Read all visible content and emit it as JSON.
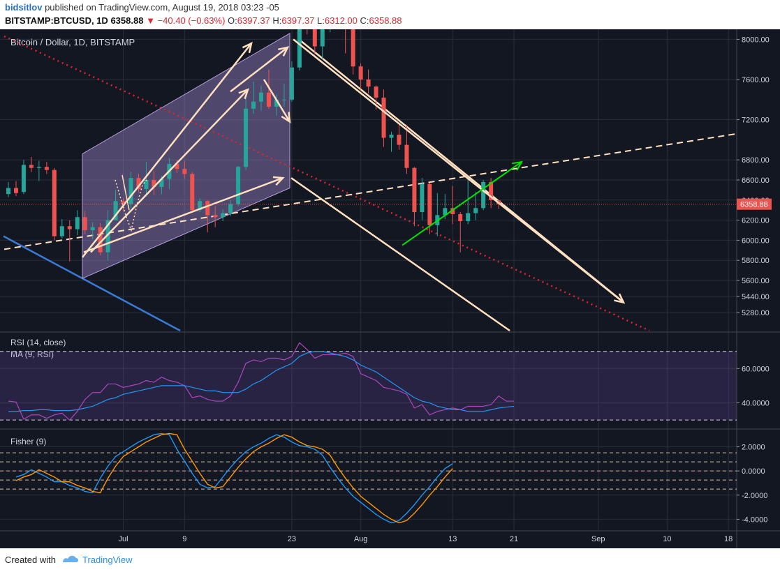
{
  "header": {
    "username": "bidsitlov",
    "published_text": "published on TradingView.com, August 19, 2018 03:23 -05",
    "symbol": "BITSTAMP:BTCUSD, 1D",
    "last": "6358.88",
    "change": "−40.40 (−0.63%)",
    "o_label": "O:",
    "o_value": "6397.37",
    "h_label": "H:",
    "h_value": "6397.37",
    "l_label": "L:",
    "l_value": "6312.00",
    "c_label": "C:",
    "c_value": "6358.88"
  },
  "footer": {
    "created_with": "Created with",
    "brand": "TradingView"
  },
  "colors": {
    "background": "#131722",
    "bullish": "#26a69a",
    "bearish": "#ef5350",
    "rsi_line": "#ab47bc",
    "rsi_ma": "#2196f3",
    "fisher": "#2196f3",
    "fisher_trigger": "#ff9800",
    "drawing": "#ffe0c0",
    "green_arrow": "#00e600",
    "blue_line": "#3a7bd5",
    "red_dotted": "#e0242f",
    "channel_fill": "#9a86c8"
  },
  "chart_data": [
    {
      "type": "candlestick",
      "title": "Bitcoin / Dollar, 1D, BITSTAMP",
      "last_price_label": "6358.88",
      "ylim": [
        5100,
        8100
      ],
      "y_ticks": [
        5280,
        5440,
        5600,
        5800,
        6000,
        6200,
        6400,
        6600,
        6800,
        7200,
        7600,
        8000
      ],
      "y_tick_labels": [
        "5280.00",
        "5440.00",
        "5600.00",
        "5800.00",
        "6000.00",
        "6200.00",
        "6400.00",
        "6600.00",
        "6800.00",
        "7200.00",
        "7600.00",
        "8000.00"
      ],
      "x_tick_labels": [
        "Jul",
        "9",
        "23",
        "Aug",
        "13",
        "21",
        "Sep",
        "10",
        "18"
      ],
      "x_tick_dates": [
        "2018-07-01",
        "2018-07-09",
        "2018-07-23",
        "2018-08-01",
        "2018-08-13",
        "2018-08-21",
        "2018-09-01",
        "2018-09-10",
        "2018-09-18"
      ],
      "x_range": [
        "2018-06-16",
        "2018-09-25"
      ],
      "candles": [
        {
          "date": "2018-06-16",
          "o": 6460,
          "h": 6580,
          "l": 6430,
          "c": 6520
        },
        {
          "date": "2018-06-17",
          "o": 6520,
          "h": 6590,
          "l": 6440,
          "c": 6470
        },
        {
          "date": "2018-06-18",
          "o": 6480,
          "h": 6800,
          "l": 6460,
          "c": 6750
        },
        {
          "date": "2018-06-19",
          "o": 6750,
          "h": 6830,
          "l": 6680,
          "c": 6720
        },
        {
          "date": "2018-06-20",
          "o": 6720,
          "h": 6790,
          "l": 6590,
          "c": 6730
        },
        {
          "date": "2018-06-21",
          "o": 6730,
          "h": 6780,
          "l": 6660,
          "c": 6700
        },
        {
          "date": "2018-06-22",
          "o": 6700,
          "h": 6720,
          "l": 6000,
          "c": 6040
        },
        {
          "date": "2018-06-23",
          "o": 6040,
          "h": 6210,
          "l": 6020,
          "c": 6140
        },
        {
          "date": "2018-06-24",
          "o": 6140,
          "h": 6200,
          "l": 5790,
          "c": 6110
        },
        {
          "date": "2018-06-25",
          "o": 6110,
          "h": 6300,
          "l": 6050,
          "c": 6230
        },
        {
          "date": "2018-06-26",
          "o": 6230,
          "h": 6290,
          "l": 6060,
          "c": 6100
        },
        {
          "date": "2018-06-27",
          "o": 6100,
          "h": 6180,
          "l": 6010,
          "c": 6130
        },
        {
          "date": "2018-06-28",
          "o": 6130,
          "h": 6170,
          "l": 5850,
          "c": 5880
        },
        {
          "date": "2018-06-29",
          "o": 5880,
          "h": 6300,
          "l": 5800,
          "c": 6200
        },
        {
          "date": "2018-06-30",
          "o": 6200,
          "h": 6500,
          "l": 6200,
          "c": 6390
        },
        {
          "date": "2018-07-01",
          "o": 6390,
          "h": 6420,
          "l": 6290,
          "c": 6360
        },
        {
          "date": "2018-07-02",
          "o": 6360,
          "h": 6680,
          "l": 6320,
          "c": 6620
        },
        {
          "date": "2018-07-03",
          "o": 6620,
          "h": 6660,
          "l": 6480,
          "c": 6510
        },
        {
          "date": "2018-07-04",
          "o": 6510,
          "h": 6780,
          "l": 6460,
          "c": 6600
        },
        {
          "date": "2018-07-05",
          "o": 6600,
          "h": 6690,
          "l": 6450,
          "c": 6530
        },
        {
          "date": "2018-07-06",
          "o": 6530,
          "h": 6640,
          "l": 6460,
          "c": 6610
        },
        {
          "date": "2018-07-07",
          "o": 6610,
          "h": 6820,
          "l": 6510,
          "c": 6760
        },
        {
          "date": "2018-07-08",
          "o": 6760,
          "h": 6800,
          "l": 6670,
          "c": 6710
        },
        {
          "date": "2018-07-09",
          "o": 6710,
          "h": 6790,
          "l": 6610,
          "c": 6660
        },
        {
          "date": "2018-07-10",
          "o": 6660,
          "h": 6680,
          "l": 6290,
          "c": 6300
        },
        {
          "date": "2018-07-11",
          "o": 6300,
          "h": 6420,
          "l": 6280,
          "c": 6390
        },
        {
          "date": "2018-07-12",
          "o": 6390,
          "h": 6400,
          "l": 6080,
          "c": 6250
        },
        {
          "date": "2018-07-13",
          "o": 6250,
          "h": 6340,
          "l": 6130,
          "c": 6230
        },
        {
          "date": "2018-07-14",
          "o": 6230,
          "h": 6310,
          "l": 6190,
          "c": 6270
        },
        {
          "date": "2018-07-15",
          "o": 6270,
          "h": 6400,
          "l": 6240,
          "c": 6360
        },
        {
          "date": "2018-07-16",
          "o": 6360,
          "h": 6740,
          "l": 6340,
          "c": 6730
        },
        {
          "date": "2018-07-17",
          "o": 6730,
          "h": 7450,
          "l": 6700,
          "c": 7310
        },
        {
          "date": "2018-07-18",
          "o": 7310,
          "h": 7580,
          "l": 7260,
          "c": 7380
        },
        {
          "date": "2018-07-19",
          "o": 7380,
          "h": 7540,
          "l": 7290,
          "c": 7470
        },
        {
          "date": "2018-07-20",
          "o": 7470,
          "h": 7700,
          "l": 7310,
          "c": 7330
        },
        {
          "date": "2018-07-21",
          "o": 7330,
          "h": 7450,
          "l": 7240,
          "c": 7400
        },
        {
          "date": "2018-07-22",
          "o": 7400,
          "h": 7560,
          "l": 7330,
          "c": 7400
        },
        {
          "date": "2018-07-23",
          "o": 7400,
          "h": 7780,
          "l": 7380,
          "c": 7720
        },
        {
          "date": "2018-07-24",
          "o": 7720,
          "h": 8470,
          "l": 7690,
          "c": 8400
        },
        {
          "date": "2018-07-25",
          "o": 8400,
          "h": 8480,
          "l": 8050,
          "c": 8170
        },
        {
          "date": "2018-07-26",
          "o": 8170,
          "h": 8300,
          "l": 7850,
          "c": 7930
        },
        {
          "date": "2018-07-27",
          "o": 7930,
          "h": 8270,
          "l": 7800,
          "c": 8180
        },
        {
          "date": "2018-07-28",
          "o": 8180,
          "h": 8230,
          "l": 8070,
          "c": 8230
        },
        {
          "date": "2018-07-29",
          "o": 8230,
          "h": 8290,
          "l": 8110,
          "c": 8210
        },
        {
          "date": "2018-07-30",
          "o": 8210,
          "h": 8270,
          "l": 7860,
          "c": 8170
        },
        {
          "date": "2018-07-31",
          "o": 8170,
          "h": 8180,
          "l": 7650,
          "c": 7730
        },
        {
          "date": "2018-08-01",
          "o": 7730,
          "h": 7760,
          "l": 7500,
          "c": 7600
        },
        {
          "date": "2018-08-02",
          "o": 7600,
          "h": 7700,
          "l": 7460,
          "c": 7530
        },
        {
          "date": "2018-08-03",
          "o": 7530,
          "h": 7540,
          "l": 7300,
          "c": 7420
        },
        {
          "date": "2018-08-04",
          "o": 7420,
          "h": 7500,
          "l": 6930,
          "c": 7020
        },
        {
          "date": "2018-08-05",
          "o": 7020,
          "h": 7080,
          "l": 6880,
          "c": 7050
        },
        {
          "date": "2018-08-06",
          "o": 7050,
          "h": 7150,
          "l": 6900,
          "c": 6950
        },
        {
          "date": "2018-08-07",
          "o": 6950,
          "h": 7150,
          "l": 6660,
          "c": 6720
        },
        {
          "date": "2018-08-08",
          "o": 6720,
          "h": 6730,
          "l": 6140,
          "c": 6280
        },
        {
          "date": "2018-08-09",
          "o": 6280,
          "h": 6620,
          "l": 6200,
          "c": 6560
        },
        {
          "date": "2018-08-10",
          "o": 6560,
          "h": 6570,
          "l": 6060,
          "c": 6150
        },
        {
          "date": "2018-08-11",
          "o": 6150,
          "h": 6470,
          "l": 6040,
          "c": 6250
        },
        {
          "date": "2018-08-12",
          "o": 6250,
          "h": 6460,
          "l": 6210,
          "c": 6320
        },
        {
          "date": "2018-08-13",
          "o": 6320,
          "h": 6540,
          "l": 6160,
          "c": 6260
        },
        {
          "date": "2018-08-14",
          "o": 6260,
          "h": 6280,
          "l": 5880,
          "c": 6190
        },
        {
          "date": "2018-08-15",
          "o": 6190,
          "h": 6620,
          "l": 6160,
          "c": 6270
        },
        {
          "date": "2018-08-16",
          "o": 6270,
          "h": 6480,
          "l": 6200,
          "c": 6320
        },
        {
          "date": "2018-08-17",
          "o": 6320,
          "h": 6600,
          "l": 6300,
          "c": 6580
        },
        {
          "date": "2018-08-18",
          "o": 6580,
          "h": 6620,
          "l": 6320,
          "c": 6400
        },
        {
          "date": "2018-08-19",
          "o": 6397.37,
          "h": 6397.37,
          "l": 6312.0,
          "c": 6358.88
        }
      ]
    },
    {
      "type": "line",
      "title": "RSI (14, close)",
      "subtitle": "MA (9, RSI)",
      "ylim": [
        26,
        80
      ],
      "y_ticks": [
        40,
        60
      ],
      "y_tick_labels": [
        "40.0000",
        "60.0000"
      ],
      "band": [
        30,
        70
      ],
      "series": [
        {
          "name": "RSI (14, close)",
          "values": [
            41,
            40.5,
            30.5,
            33,
            33,
            31,
            33,
            34,
            30,
            35,
            42,
            46,
            46,
            51,
            51,
            49,
            50,
            51,
            53,
            52,
            55,
            53,
            52,
            50,
            43,
            44,
            42,
            41,
            41,
            44,
            52,
            63,
            65,
            64,
            66,
            66,
            65,
            67,
            75,
            71,
            66,
            68,
            68,
            68,
            69,
            67,
            57,
            55,
            53,
            49,
            48,
            47,
            45,
            37,
            39,
            33,
            35,
            36,
            37,
            36,
            38,
            38,
            38,
            39,
            44,
            41,
            41
          ]
        },
        {
          "name": "MA (9, RSI)",
          "values": [
            35,
            35,
            35.5,
            35.5,
            36,
            36,
            35.5,
            35.5,
            35.5,
            36,
            37,
            38,
            40,
            42,
            43,
            45,
            46,
            47,
            48,
            49,
            50,
            50,
            50,
            50,
            49,
            48,
            47,
            47,
            46,
            46,
            46,
            48,
            51,
            53,
            56,
            59,
            61,
            63,
            67,
            69,
            70,
            70,
            69,
            68,
            67,
            65,
            62,
            60,
            58,
            55,
            52,
            49,
            46,
            43,
            41,
            40,
            38,
            37,
            36,
            36,
            35,
            35,
            35,
            36,
            37,
            37.5,
            38
          ]
        }
      ]
    },
    {
      "type": "line",
      "title": "Fisher (9)",
      "ylim": [
        -4.9,
        3.3
      ],
      "y_ticks": [
        -4,
        -2,
        0,
        2
      ],
      "y_tick_labels": [
        "-4.0000",
        "-2.0000",
        "0.0000",
        "2.0000"
      ],
      "levels": [
        -1.5,
        -0.75,
        0,
        0.75,
        1.5
      ],
      "series": [
        {
          "name": "Fisher",
          "values": [
            -0.5,
            -0.3,
            0.1,
            -0.2,
            -0.5,
            -0.9,
            -0.9,
            -1.2,
            -1.4,
            -1.7,
            -1.8,
            -0.6,
            0.4,
            1.2,
            1.6,
            2.0,
            2.4,
            2.7,
            3.0,
            3.1,
            3.0,
            1.8,
            0.8,
            -0.2,
            -1.1,
            -1.4,
            -1.3,
            -0.5,
            0.3,
            1.0,
            1.6,
            2.0,
            2.3,
            2.7,
            3.0,
            2.8,
            2.4,
            2.1,
            2.0,
            1.8,
            1.3,
            0.3,
            -0.6,
            -1.4,
            -2.1,
            -2.6,
            -3.1,
            -3.6,
            -4.0,
            -4.3,
            -4.1,
            -3.5,
            -2.8,
            -2.0,
            -1.3,
            -0.5,
            0.2,
            0.6
          ]
        },
        {
          "name": "Trigger",
          "values": [
            -0.8,
            -0.5,
            -0.3,
            0.1,
            -0.2,
            -0.5,
            -0.9,
            -0.9,
            -1.2,
            -1.4,
            -1.7,
            -1.8,
            -0.6,
            0.4,
            1.2,
            1.6,
            2.0,
            2.4,
            2.7,
            3.0,
            3.1,
            3.0,
            1.8,
            0.8,
            -0.2,
            -1.1,
            -1.4,
            -1.3,
            -0.5,
            0.3,
            1.0,
            1.6,
            2.0,
            2.3,
            2.7,
            3.0,
            2.8,
            2.4,
            2.1,
            2.0,
            1.8,
            1.3,
            0.3,
            -0.6,
            -1.4,
            -2.1,
            -2.6,
            -3.1,
            -3.6,
            -4.0,
            -4.3,
            -4.1,
            -3.5,
            -2.8,
            -2.0,
            -1.3,
            -0.5,
            0.2
          ]
        }
      ]
    }
  ]
}
